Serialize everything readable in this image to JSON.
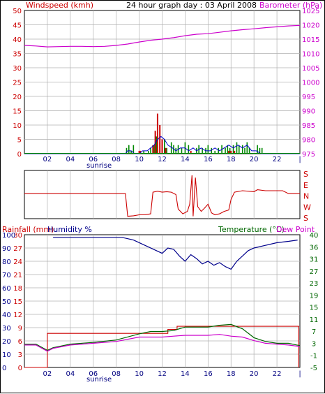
{
  "title": "24 hour graph day : 03 April 2008",
  "colors": {
    "wind_speed": "#cc0000",
    "wind_gust": "#008800",
    "wind_avg": "#0000cc",
    "barometer": "#cc00cc",
    "direction": "#cc0000",
    "rainfall": "#cc0000",
    "humidity": "#00008b",
    "temperature": "#006600",
    "dewpoint": "#cc00cc",
    "text_wind": "#cc0000",
    "text_baro": "#cc00cc",
    "text_humidity": "#00008b",
    "text_temp": "#006600",
    "grid": "#b0b0b0"
  },
  "labels": {
    "windspeed": "Windspeed (kmh)",
    "barometer": "Barometer (hPa)",
    "rainfall": "Rainfall (mm)",
    "humidity": "Humidity %",
    "temperature": "Temperature (°C)",
    "dewpoint": "Dew Point",
    "sunrise": "sunrise"
  },
  "chart_data": [
    {
      "type": "bar",
      "title": "24 hour graph day : 03 April 2008",
      "ylabel": "Windspeed (kmh)",
      "ylim": [
        0,
        50
      ],
      "y_ticks": [
        0,
        5,
        10,
        15,
        20,
        25,
        30,
        35,
        40,
        45,
        50
      ],
      "x_ticks": [
        "02",
        "04",
        "06",
        "08",
        "10",
        "12",
        "14",
        "16",
        "18",
        "20",
        "22",
        "|"
      ],
      "xlim_hours": [
        0,
        24
      ],
      "grid": true,
      "series": [
        {
          "key": "gust",
          "values": [
            [
              8.9,
              2
            ],
            [
              9.1,
              3
            ],
            [
              9.3,
              1
            ],
            [
              9.5,
              3
            ],
            [
              10.4,
              1
            ],
            [
              10.8,
              1
            ],
            [
              11.0,
              2
            ],
            [
              11.3,
              3
            ],
            [
              11.5,
              6
            ],
            [
              11.8,
              4
            ],
            [
              12.0,
              3
            ],
            [
              12.2,
              5
            ],
            [
              12.4,
              2
            ],
            [
              12.8,
              4
            ],
            [
              13.0,
              3
            ],
            [
              13.2,
              2
            ],
            [
              13.4,
              3
            ],
            [
              13.7,
              2
            ],
            [
              14.0,
              4
            ],
            [
              14.3,
              3
            ],
            [
              15.0,
              2
            ],
            [
              15.2,
              3
            ],
            [
              15.5,
              2
            ],
            [
              15.8,
              2
            ],
            [
              16.0,
              3
            ],
            [
              16.3,
              2
            ],
            [
              16.6,
              1
            ],
            [
              16.9,
              2
            ],
            [
              17.2,
              3
            ],
            [
              17.5,
              2
            ],
            [
              17.7,
              3
            ],
            [
              17.9,
              2
            ],
            [
              18.2,
              3
            ],
            [
              18.5,
              4
            ],
            [
              18.7,
              3
            ],
            [
              19.0,
              3
            ],
            [
              19.2,
              2
            ],
            [
              19.4,
              4
            ],
            [
              19.6,
              2
            ],
            [
              20.3,
              3
            ],
            [
              20.5,
              2
            ],
            [
              20.7,
              2
            ]
          ]
        },
        {
          "key": "speed",
          "values": [
            [
              10.0,
              1
            ],
            [
              10.1,
              1
            ],
            [
              11.2,
              3
            ],
            [
              11.4,
              8
            ],
            [
              11.6,
              14
            ],
            [
              11.8,
              10
            ],
            [
              12.0,
              5
            ],
            [
              12.3,
              2
            ],
            [
              14.5,
              1
            ],
            [
              17.8,
              1
            ],
            [
              18.0,
              1
            ],
            [
              18.3,
              1
            ]
          ]
        },
        {
          "key": "avg",
          "values": [
            [
              0,
              0
            ],
            [
              8.8,
              0
            ],
            [
              9.0,
              1
            ],
            [
              9.3,
              1
            ],
            [
              9.6,
              0
            ],
            [
              10.0,
              0
            ],
            [
              10.3,
              1
            ],
            [
              10.7,
              1
            ],
            [
              11.0,
              2
            ],
            [
              11.3,
              3
            ],
            [
              11.6,
              5
            ],
            [
              11.9,
              6
            ],
            [
              12.2,
              5
            ],
            [
              12.5,
              3
            ],
            [
              12.9,
              2
            ],
            [
              13.2,
              1
            ],
            [
              13.6,
              2
            ],
            [
              14.0,
              2
            ],
            [
              14.3,
              1
            ],
            [
              14.7,
              2
            ],
            [
              15.0,
              1
            ],
            [
              15.4,
              2
            ],
            [
              15.8,
              1
            ],
            [
              16.2,
              1
            ],
            [
              16.6,
              2
            ],
            [
              17.0,
              1
            ],
            [
              17.4,
              2
            ],
            [
              17.8,
              3
            ],
            [
              18.2,
              2
            ],
            [
              18.6,
              3
            ],
            [
              19.0,
              2
            ],
            [
              19.4,
              3
            ],
            [
              19.8,
              1
            ],
            [
              20.2,
              1
            ],
            [
              20.6,
              0
            ],
            [
              24,
              0
            ]
          ]
        }
      ]
    },
    {
      "type": "line",
      "ylabel": "Barometer (hPa)",
      "ylim": [
        975,
        1025
      ],
      "y_ticks": [
        975,
        980,
        985,
        990,
        995,
        1000,
        1005,
        1010,
        1015,
        1020,
        1025
      ],
      "series": [
        {
          "key": "barometer",
          "values": [
            [
              0,
              1012.8
            ],
            [
              1,
              1012.6
            ],
            [
              2,
              1012.3
            ],
            [
              3,
              1012.4
            ],
            [
              4,
              1012.5
            ],
            [
              5,
              1012.5
            ],
            [
              6,
              1012.4
            ],
            [
              7,
              1012.5
            ],
            [
              8,
              1012.8
            ],
            [
              9,
              1013.3
            ],
            [
              10,
              1014.0
            ],
            [
              11,
              1014.6
            ],
            [
              12,
              1015.0
            ],
            [
              13,
              1015.5
            ],
            [
              14,
              1016.2
            ],
            [
              15,
              1016.7
            ],
            [
              16,
              1016.9
            ],
            [
              17,
              1017.4
            ],
            [
              18,
              1017.9
            ],
            [
              19,
              1018.3
            ],
            [
              20,
              1018.6
            ],
            [
              21,
              1019.0
            ],
            [
              22,
              1019.3
            ],
            [
              23,
              1019.6
            ],
            [
              24,
              1019.8
            ]
          ]
        }
      ]
    },
    {
      "type": "line",
      "ylabel": "Wind direction",
      "y_ticks": [
        "S",
        "E",
        "N",
        "W",
        "S"
      ],
      "series": [
        {
          "key": "direction",
          "values": [
            [
              0,
              0.52
            ],
            [
              8.8,
              0.52
            ],
            [
              9.0,
              0.05
            ],
            [
              9.5,
              0.06
            ],
            [
              10.0,
              0.08
            ],
            [
              10.5,
              0.08
            ],
            [
              11.0,
              0.1
            ],
            [
              11.2,
              0.55
            ],
            [
              11.6,
              0.57
            ],
            [
              12.0,
              0.55
            ],
            [
              12.4,
              0.56
            ],
            [
              12.8,
              0.55
            ],
            [
              13.2,
              0.5
            ],
            [
              13.4,
              0.2
            ],
            [
              13.8,
              0.1
            ],
            [
              14.2,
              0.15
            ],
            [
              14.4,
              0.3
            ],
            [
              14.6,
              0.9
            ],
            [
              14.7,
              0.05
            ],
            [
              14.9,
              0.85
            ],
            [
              15.1,
              0.25
            ],
            [
              15.4,
              0.15
            ],
            [
              15.7,
              0.22
            ],
            [
              16.0,
              0.3
            ],
            [
              16.3,
              0.12
            ],
            [
              16.6,
              0.08
            ],
            [
              17.0,
              0.1
            ],
            [
              17.4,
              0.15
            ],
            [
              17.8,
              0.18
            ],
            [
              18.0,
              0.4
            ],
            [
              18.3,
              0.55
            ],
            [
              19.0,
              0.58
            ],
            [
              20.0,
              0.56
            ],
            [
              20.3,
              0.6
            ],
            [
              21.0,
              0.58
            ],
            [
              22.5,
              0.58
            ],
            [
              23.0,
              0.52
            ],
            [
              24,
              0.52
            ]
          ]
        }
      ]
    },
    {
      "type": "line",
      "ylabel": "Rainfall (mm)",
      "ylim": [
        0,
        30
      ],
      "y_ticks": [
        0,
        3,
        6,
        9,
        12,
        15,
        18,
        21,
        24,
        27,
        30
      ],
      "series": [
        {
          "key": "rainfall",
          "values": [
            [
              0,
              0
            ],
            [
              2.0,
              0
            ],
            [
              2.0,
              7.7
            ],
            [
              12.5,
              7.7
            ],
            [
              12.5,
              8.6
            ],
            [
              13.3,
              8.6
            ],
            [
              13.3,
              9.3
            ],
            [
              23.9,
              9.3
            ],
            [
              23.9,
              0
            ]
          ]
        }
      ]
    },
    {
      "type": "line",
      "ylabel": "Humidity %",
      "ylim": [
        0,
        100
      ],
      "y_ticks": [
        0,
        10,
        20,
        30,
        40,
        50,
        60,
        70,
        80,
        90,
        100
      ],
      "series": [
        {
          "key": "humidity",
          "values": [
            [
              2.5,
              98
            ],
            [
              3,
              98
            ],
            [
              8.5,
              98
            ],
            [
              9.5,
              96
            ],
            [
              10.5,
              92
            ],
            [
              11.5,
              88
            ],
            [
              12.0,
              86
            ],
            [
              12.5,
              90
            ],
            [
              13.0,
              89
            ],
            [
              13.5,
              84
            ],
            [
              14.0,
              80
            ],
            [
              14.5,
              85
            ],
            [
              15.0,
              82
            ],
            [
              15.5,
              78
            ],
            [
              16.0,
              80
            ],
            [
              16.5,
              77
            ],
            [
              17.0,
              79
            ],
            [
              17.5,
              76
            ],
            [
              18.0,
              74
            ],
            [
              18.5,
              80
            ],
            [
              19.0,
              84
            ],
            [
              19.5,
              88
            ],
            [
              20.0,
              90
            ],
            [
              21.0,
              92
            ],
            [
              22.0,
              94
            ],
            [
              23.0,
              95
            ],
            [
              23.8,
              96
            ]
          ]
        }
      ]
    },
    {
      "type": "line",
      "ylabel": "Temperature (°C)",
      "ylim": [
        -5,
        40
      ],
      "y_ticks": [
        -5,
        -1,
        3,
        7,
        11,
        15,
        19,
        23,
        27,
        31,
        36,
        40
      ],
      "series": [
        {
          "key": "temperature",
          "values": [
            [
              0,
              2.9
            ],
            [
              1,
              2.9
            ],
            [
              2.0,
              0.8
            ],
            [
              2.5,
              1.7
            ],
            [
              4,
              2.9
            ],
            [
              6,
              3.5
            ],
            [
              8,
              4.3
            ],
            [
              10,
              6.4
            ],
            [
              11,
              7.2
            ],
            [
              12,
              7.2
            ],
            [
              13,
              7.5
            ],
            [
              14,
              8.7
            ],
            [
              15,
              8.7
            ],
            [
              16,
              8.7
            ],
            [
              17,
              9.3
            ],
            [
              18,
              9.6
            ],
            [
              19,
              8.1
            ],
            [
              20,
              5.1
            ],
            [
              21,
              3.8
            ],
            [
              22,
              3.2
            ],
            [
              23,
              3.2
            ],
            [
              24,
              2.4
            ]
          ]
        },
        {
          "key": "dewpoint",
          "values": [
            [
              0,
              2.6
            ],
            [
              1,
              2.6
            ],
            [
              2.0,
              0.5
            ],
            [
              2.5,
              1.5
            ],
            [
              4,
              2.6
            ],
            [
              6,
              3.2
            ],
            [
              8,
              3.8
            ],
            [
              10,
              5.3
            ],
            [
              11,
              5.3
            ],
            [
              12,
              5.3
            ],
            [
              13,
              5.6
            ],
            [
              14,
              5.9
            ],
            [
              15,
              5.9
            ],
            [
              16,
              5.9
            ],
            [
              17,
              6.2
            ],
            [
              18,
              5.6
            ],
            [
              19,
              5.3
            ],
            [
              20,
              4.1
            ],
            [
              21,
              3.2
            ],
            [
              22,
              2.9
            ],
            [
              23,
              2.6
            ],
            [
              24,
              2.1
            ]
          ]
        }
      ]
    }
  ]
}
